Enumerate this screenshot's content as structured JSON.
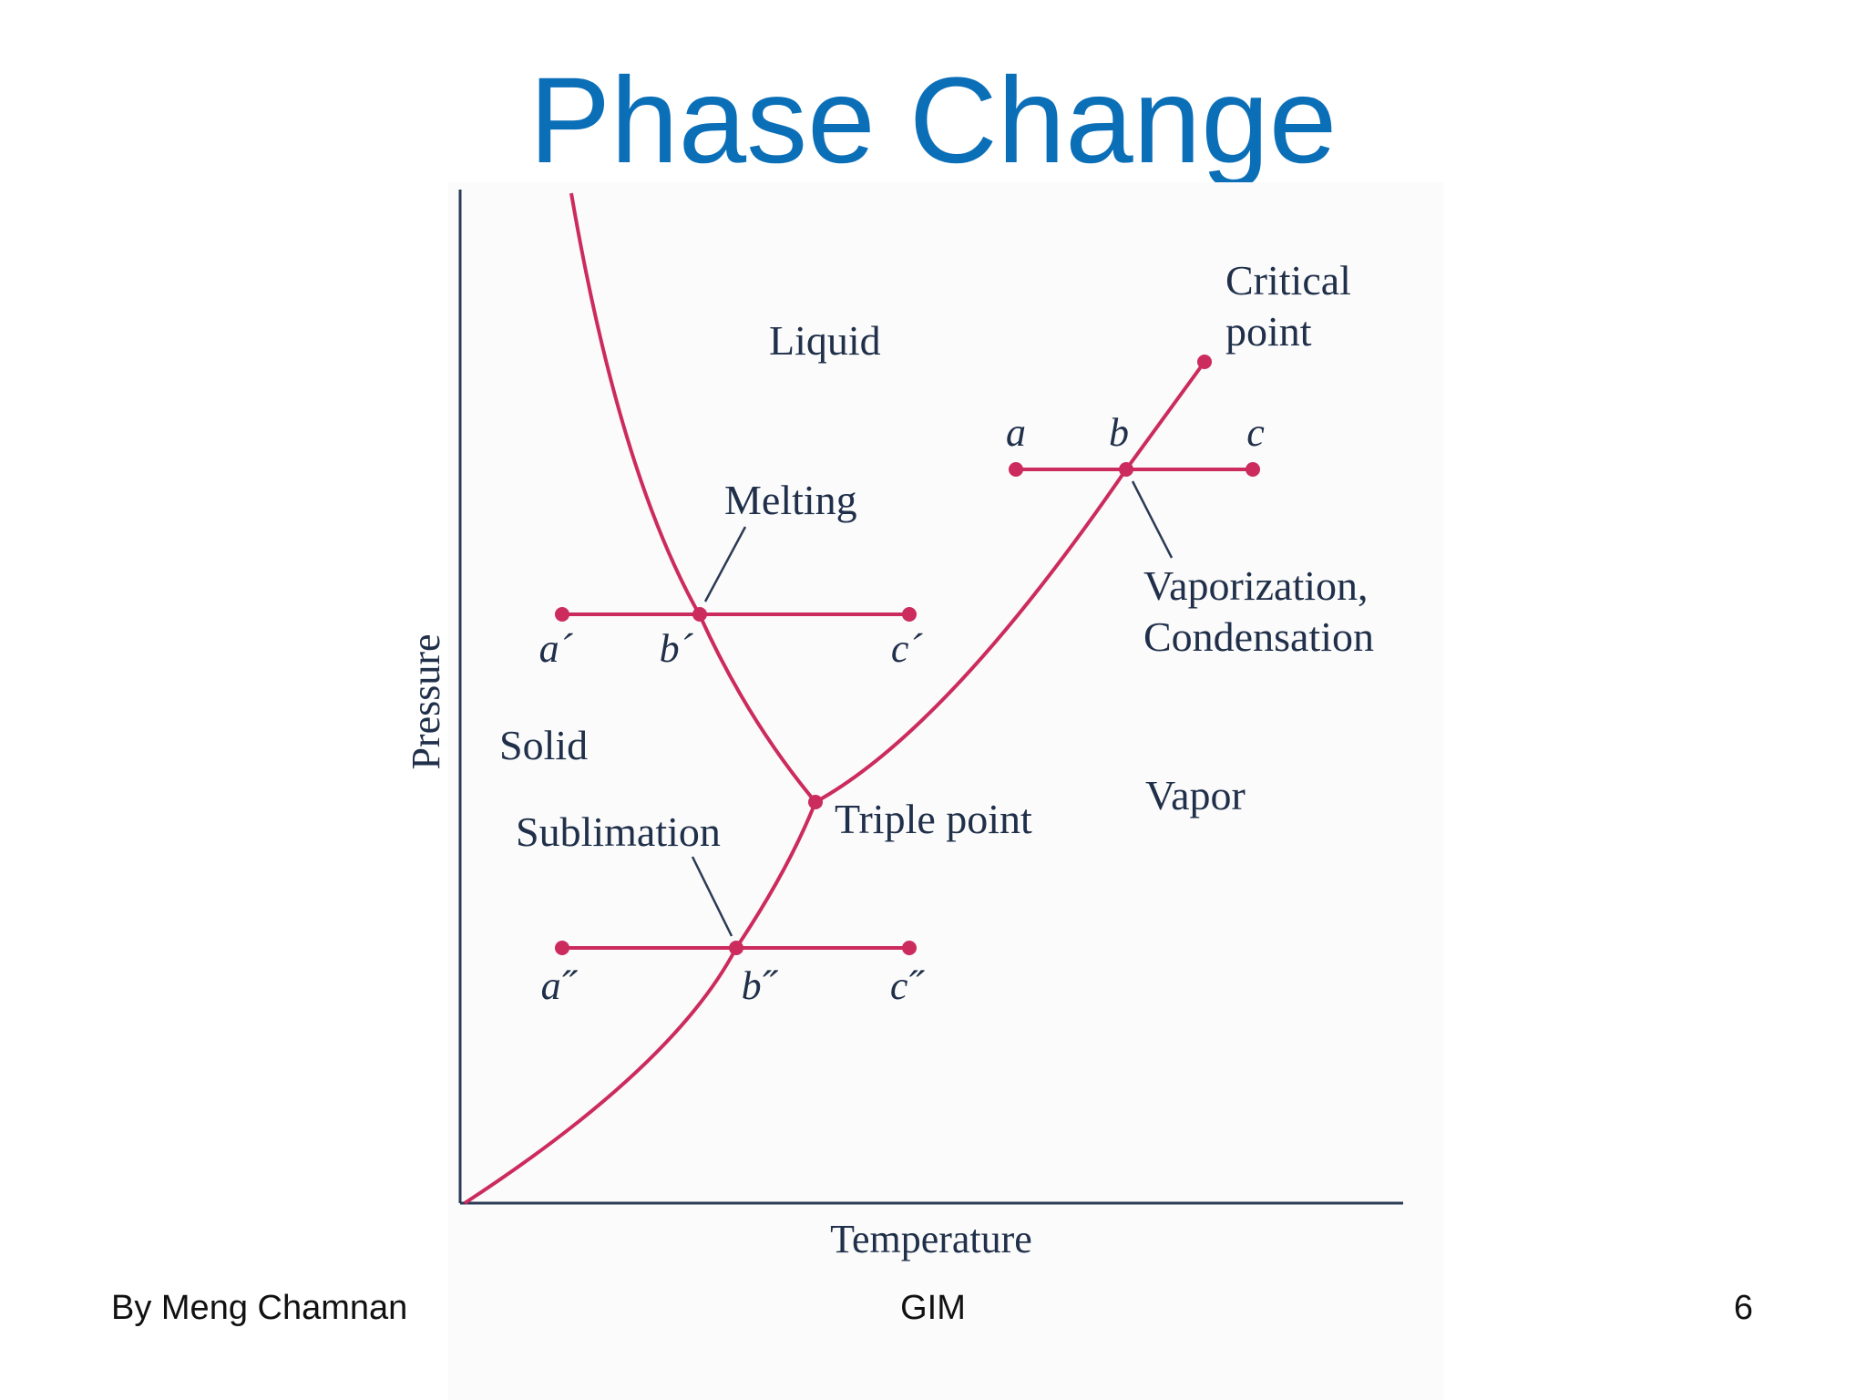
{
  "slide": {
    "title": "Phase Change",
    "footer": {
      "author": "By Meng Chamnan",
      "organization": "GIM",
      "page_number": "6"
    }
  },
  "diagram": {
    "axes": {
      "x_label": "Temperature",
      "y_label": "Pressure"
    },
    "regions": {
      "liquid": "Liquid",
      "solid": "Solid",
      "vapor": "Vapor"
    },
    "points": {
      "critical_line1": "Critical",
      "critical_line2": "point",
      "triple": "Triple point"
    },
    "processes": {
      "melting": "Melting",
      "sublimation": "Sublimation",
      "vaporization_line1": "Vaporization,",
      "vaporization_line2": "Condensation"
    },
    "state_labels": {
      "a": "a",
      "b": "b",
      "c": "c",
      "a_prime": "a´",
      "b_prime": "b´",
      "c_prime": "c´",
      "a_dprime": "a˝",
      "b_dprime": "b˝",
      "c_dprime": "c˝"
    },
    "colors": {
      "curve": "#cc2b5e",
      "axis": "#2b3a55",
      "text": "#20304a",
      "title": "#0b6fb8"
    }
  }
}
